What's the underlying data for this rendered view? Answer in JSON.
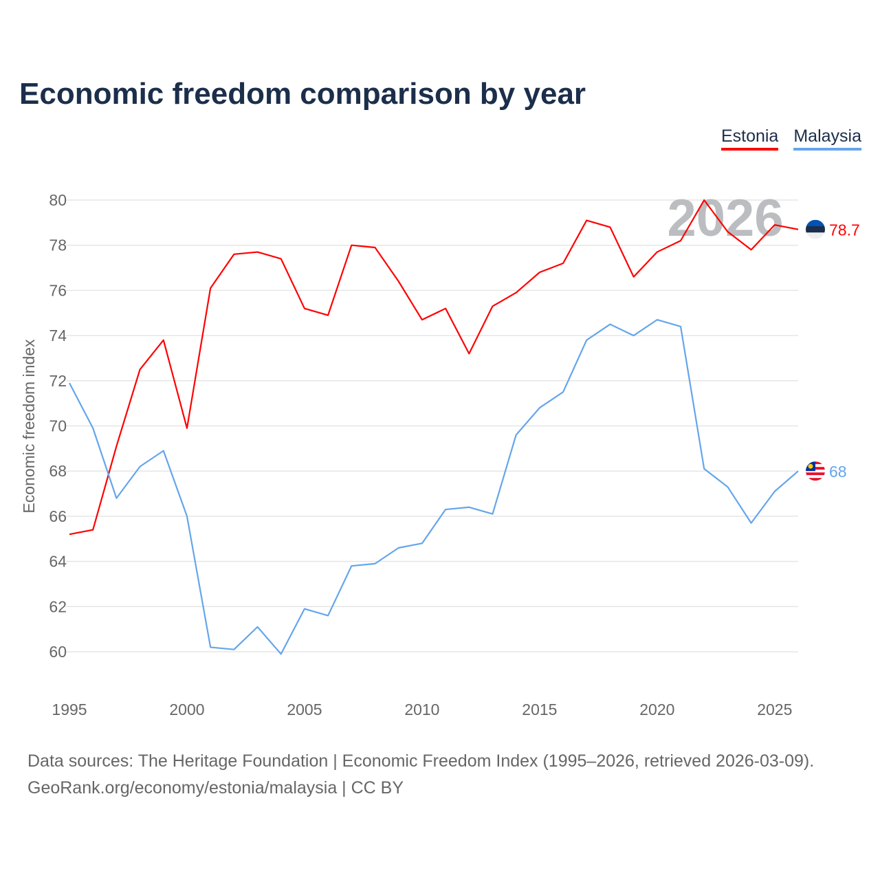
{
  "title": "Economic freedom comparison by year",
  "legend": [
    {
      "name": "Estonia",
      "color": "#ff0000"
    },
    {
      "name": "Malaysia",
      "color": "#64a5eb"
    }
  ],
  "source_line1": "Data sources: The Heritage Foundation | Economic Freedom Index (1995–2026, retrieved 2026-03-09).",
  "source_line2": "GeoRank.org/economy/estonia/malaysia | CC BY",
  "watermark_year": "2026",
  "chart_data": {
    "type": "line",
    "title": "Economic freedom comparison by year",
    "xlabel": "",
    "ylabel": "Economic freedom index",
    "x": [
      1995,
      1996,
      1997,
      1998,
      1999,
      2000,
      2001,
      2002,
      2003,
      2004,
      2005,
      2006,
      2007,
      2008,
      2009,
      2010,
      2011,
      2012,
      2013,
      2014,
      2015,
      2016,
      2017,
      2018,
      2019,
      2020,
      2021,
      2022,
      2023,
      2024,
      2025,
      2026
    ],
    "xticks": [
      1995,
      2000,
      2005,
      2010,
      2015,
      2020,
      2025
    ],
    "yticks": [
      60,
      62,
      64,
      66,
      68,
      70,
      72,
      74,
      76,
      78,
      80
    ],
    "xlim": [
      1995,
      2026
    ],
    "ylim": [
      60,
      80
    ],
    "grid": true,
    "legend_position": "top-right",
    "series": [
      {
        "name": "Estonia",
        "color": "#ff0000",
        "end_label": "78.7",
        "values": [
          65.2,
          65.4,
          69.1,
          72.5,
          73.8,
          69.9,
          76.1,
          77.6,
          77.7,
          77.4,
          75.2,
          74.9,
          78.0,
          77.9,
          76.4,
          74.7,
          75.2,
          73.2,
          75.3,
          75.9,
          76.8,
          77.2,
          79.1,
          78.8,
          76.6,
          77.7,
          78.2,
          80.0,
          78.6,
          77.8,
          78.9,
          78.7
        ]
      },
      {
        "name": "Malaysia",
        "color": "#64a5eb",
        "end_label": "68",
        "values": [
          71.9,
          69.9,
          66.8,
          68.2,
          68.9,
          66.0,
          60.2,
          60.1,
          61.1,
          59.9,
          61.9,
          61.6,
          63.8,
          63.9,
          64.6,
          64.8,
          66.3,
          66.4,
          66.1,
          69.6,
          70.8,
          71.5,
          73.8,
          74.5,
          74.0,
          74.7,
          74.4,
          68.1,
          67.3,
          65.7,
          67.1,
          68.0
        ]
      }
    ]
  }
}
